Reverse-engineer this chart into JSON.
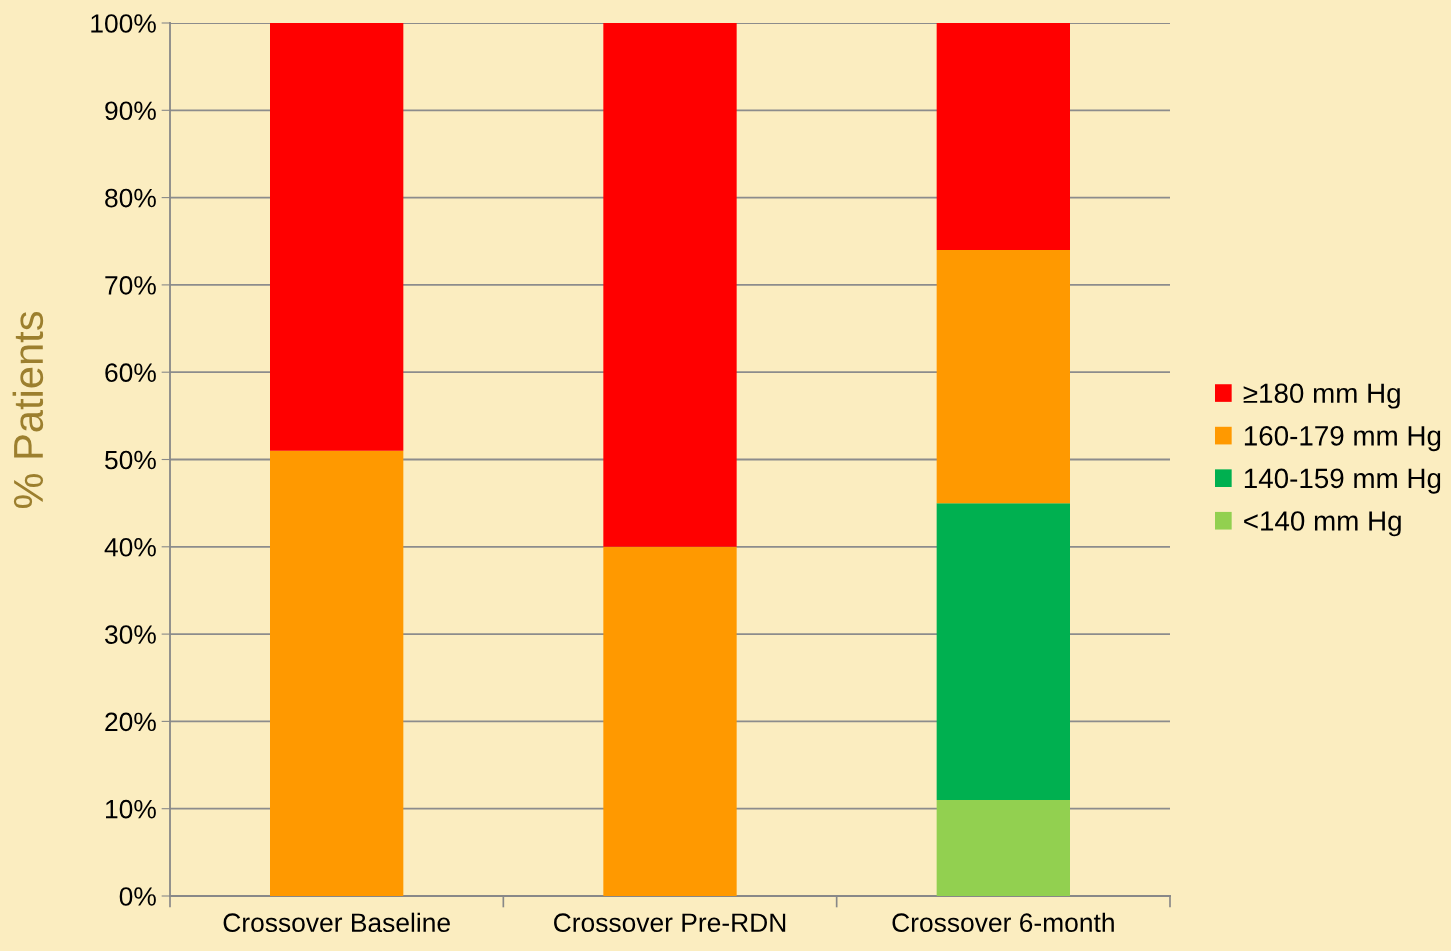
{
  "chart_data": {
    "type": "bar",
    "ylabel": "% Patients",
    "stacked": true,
    "categories": [
      "Crossover Baseline",
      "Crossover Pre-RDN",
      "Crossover 6-month"
    ],
    "series": [
      {
        "name": "<140 mm Hg",
        "color": "#92d050",
        "values": [
          0,
          0,
          11
        ]
      },
      {
        "name": "140-159 mm Hg",
        "color": "#00b050",
        "values": [
          0,
          0,
          34
        ]
      },
      {
        "name": "160-179 mm Hg",
        "color": "#ff9900",
        "values": [
          51,
          40,
          29
        ]
      },
      {
        "name": "≥180 mm Hg",
        "color": "#ff0000",
        "values": [
          49,
          60,
          26
        ]
      }
    ],
    "ylim": [
      0,
      100
    ],
    "yticks": [
      {
        "value": 0,
        "label": "0%"
      },
      {
        "value": 10,
        "label": "10%"
      },
      {
        "value": 20,
        "label": "20%"
      },
      {
        "value": 30,
        "label": "30%"
      },
      {
        "value": 40,
        "label": "40%"
      },
      {
        "value": 50,
        "label": "50%"
      },
      {
        "value": 60,
        "label": "60%"
      },
      {
        "value": 70,
        "label": "70%"
      },
      {
        "value": 80,
        "label": "80%"
      },
      {
        "value": 90,
        "label": "90%"
      },
      {
        "value": 100,
        "label": "100%"
      }
    ],
    "grid": "y",
    "legend": "right"
  }
}
